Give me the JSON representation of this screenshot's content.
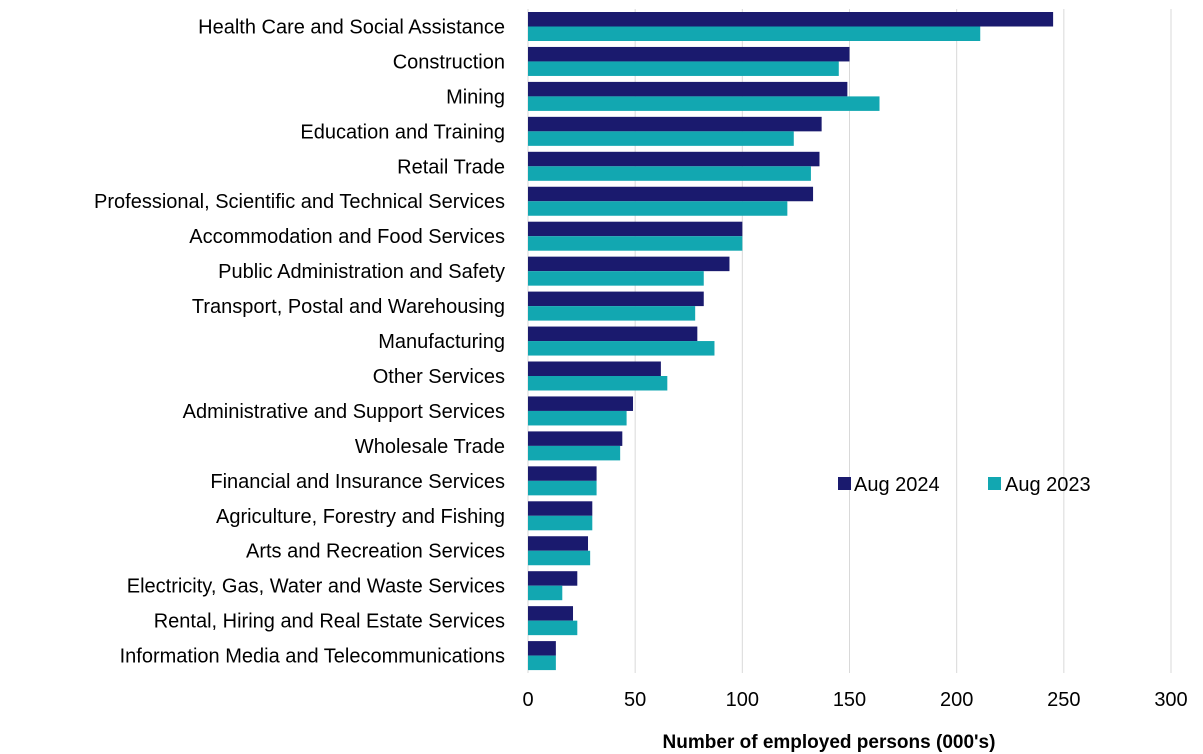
{
  "chart_data": {
    "type": "bar",
    "orientation": "horizontal",
    "categories": [
      "Health Care and Social Assistance",
      "Construction",
      "Mining",
      "Education and Training",
      "Retail Trade",
      "Professional, Scientific and Technical Services",
      "Accommodation and Food Services",
      "Public Administration and Safety",
      "Transport, Postal and Warehousing",
      "Manufacturing",
      "Other Services",
      "Administrative and Support Services",
      "Wholesale Trade",
      "Financial and Insurance Services",
      "Agriculture, Forestry and Fishing",
      "Arts and Recreation Services",
      "Electricity, Gas, Water and Waste Services",
      "Rental, Hiring and Real Estate Services",
      "Information Media and Telecommunications"
    ],
    "series": [
      {
        "name": "Aug 2024",
        "color": "#1a1a6e",
        "values": [
          245,
          150,
          149,
          137,
          136,
          133,
          100,
          94,
          82,
          79,
          62,
          49,
          44,
          32,
          30,
          28,
          23,
          21,
          13
        ]
      },
      {
        "name": "Aug 2023",
        "color": "#12a7b1",
        "values": [
          211,
          145,
          164,
          124,
          132,
          121,
          100,
          82,
          78,
          87,
          65,
          46,
          43,
          32,
          30,
          29,
          16,
          23,
          13
        ]
      }
    ],
    "xlabel": "Number of employed persons (000's)",
    "ylabel": "",
    "xlim": [
      0,
      300
    ],
    "x_ticks": [
      0,
      50,
      100,
      150,
      200,
      250,
      300
    ],
    "grid": "vertical",
    "legend_position": "right-middle"
  }
}
